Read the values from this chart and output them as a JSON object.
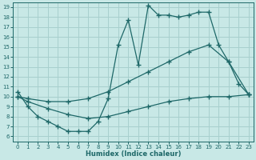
{
  "bg_color": "#c8e8e6",
  "grid_color": "#a8d0ce",
  "line_color": "#1e6868",
  "xlabel": "Humidex (Indice chaleur)",
  "xlim": [
    -0.5,
    23.5
  ],
  "ylim": [
    5.5,
    19.5
  ],
  "xticks": [
    0,
    1,
    2,
    3,
    4,
    5,
    6,
    7,
    8,
    9,
    10,
    11,
    12,
    13,
    14,
    15,
    16,
    17,
    18,
    19,
    20,
    21,
    22,
    23
  ],
  "yticks": [
    6,
    7,
    8,
    9,
    10,
    11,
    12,
    13,
    14,
    15,
    16,
    17,
    18,
    19
  ],
  "line1_x": [
    0,
    1,
    2,
    3,
    4,
    5,
    6,
    7,
    8,
    9,
    10,
    11,
    12,
    13,
    14,
    15,
    16,
    17,
    18,
    19,
    20,
    21,
    22,
    23
  ],
  "line1_y": [
    10.5,
    9.0,
    8.0,
    7.5,
    7.0,
    6.5,
    6.5,
    6.5,
    7.5,
    9.8,
    15.2,
    17.7,
    13.2,
    19.2,
    18.2,
    18.2,
    18.0,
    18.2,
    18.5,
    18.5,
    15.2,
    13.5,
    11.3,
    10.2
  ],
  "line2_x": [
    0,
    1,
    3,
    5,
    7,
    9,
    11,
    13,
    15,
    17,
    19,
    21,
    23
  ],
  "line2_y": [
    10.0,
    9.8,
    9.5,
    9.5,
    9.8,
    10.5,
    11.5,
    12.5,
    13.5,
    14.5,
    15.2,
    13.5,
    10.2
  ],
  "line3_x": [
    0,
    1,
    3,
    5,
    7,
    9,
    11,
    13,
    15,
    17,
    19,
    21,
    23
  ],
  "line3_y": [
    10.0,
    9.5,
    8.8,
    8.2,
    7.8,
    8.0,
    8.5,
    9.0,
    9.5,
    9.8,
    10.0,
    10.0,
    10.2
  ]
}
